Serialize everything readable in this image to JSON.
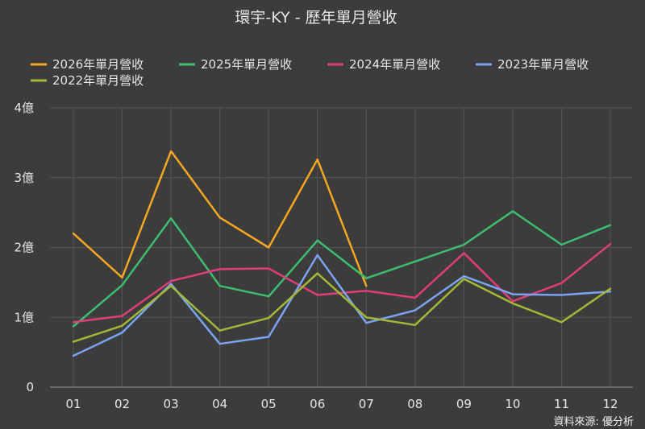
{
  "chart_data": {
    "type": "line",
    "title": "環宇-KY - 歷年單月營收",
    "categories": [
      "01",
      "02",
      "03",
      "04",
      "05",
      "06",
      "07",
      "08",
      "09",
      "10",
      "11",
      "12"
    ],
    "y_ticks": [
      0,
      1,
      2,
      3,
      4
    ],
    "y_tick_labels": [
      "0",
      "1億",
      "2億",
      "3億",
      "4億"
    ],
    "ylim": [
      0,
      4
    ],
    "grid": true,
    "legend_position": "top-left",
    "series": [
      {
        "name": "2026年單月營收",
        "color": "#f5a623",
        "values": [
          2.2,
          1.57,
          3.38,
          2.43,
          2.0,
          3.26,
          1.45,
          null,
          null,
          null,
          null,
          null
        ]
      },
      {
        "name": "2025年單月營收",
        "color": "#3dbe6e",
        "values": [
          0.87,
          1.46,
          2.42,
          1.45,
          1.3,
          2.1,
          1.56,
          1.8,
          2.04,
          2.52,
          2.04,
          2.32
        ]
      },
      {
        "name": "2024年單月營收",
        "color": "#e03d7a",
        "values": [
          0.93,
          1.02,
          1.52,
          1.69,
          1.7,
          1.32,
          1.38,
          1.28,
          1.92,
          1.23,
          1.49,
          2.05
        ]
      },
      {
        "name": "2023年單月營收",
        "color": "#7aa3f2",
        "values": [
          0.45,
          0.78,
          1.48,
          0.62,
          0.72,
          1.89,
          0.92,
          1.1,
          1.59,
          1.33,
          1.32,
          1.37
        ]
      },
      {
        "name": "2022年單月營收",
        "color": "#a3b836",
        "values": [
          0.65,
          0.88,
          1.45,
          0.81,
          0.99,
          1.63,
          1.0,
          0.89,
          1.55,
          1.2,
          0.93,
          1.41
        ]
      }
    ],
    "source": "資料來源: 優分析"
  }
}
